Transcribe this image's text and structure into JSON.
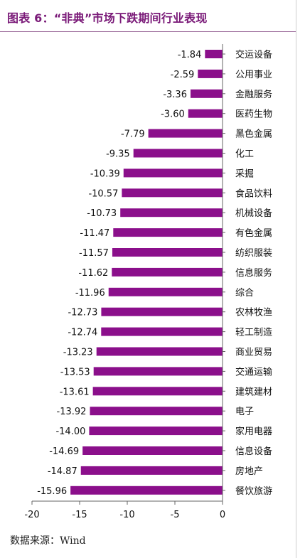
{
  "title": "图表 6：“非典”市场下跌期间行业表现",
  "source": "数据来源：Wind",
  "colors": {
    "bar": "#8B0F8B",
    "title": "#7a1a78",
    "axis": "#666666"
  },
  "chart_data": {
    "type": "bar",
    "orientation": "horizontal",
    "title": "图表 6：“非典”市场下跌期间行业表现",
    "xlabel": "",
    "ylabel": "",
    "xlim": [
      -20,
      0
    ],
    "xticks": [
      -20,
      -15,
      -10,
      -5,
      0
    ],
    "grid": false,
    "legend": "none",
    "categories": [
      "交运设备",
      "公用事业",
      "金融服务",
      "医药生物",
      "黑色金属",
      "化工",
      "采掘",
      "食品饮料",
      "机械设备",
      "有色金属",
      "纺织服装",
      "信息服务",
      "综合",
      "农林牧渔",
      "轻工制造",
      "商业贸易",
      "交通运输",
      "建筑建材",
      "电子",
      "家用电器",
      "信息设备",
      "房地产",
      "餐饮旅游"
    ],
    "values": [
      -1.84,
      -2.59,
      -3.36,
      -3.6,
      -7.79,
      -9.35,
      -10.39,
      -10.57,
      -10.73,
      -11.47,
      -11.57,
      -11.62,
      -11.96,
      -12.73,
      -12.74,
      -13.23,
      -13.53,
      -13.61,
      -13.92,
      -14.0,
      -14.69,
      -14.87,
      -15.96
    ],
    "data_labels": [
      "-1.84",
      "-2.59",
      "-3.36",
      "-3.60",
      "-7.79",
      "-9.35",
      "-10.39",
      "-10.57",
      "-10.73",
      "-11.47",
      "-11.57",
      "-11.62",
      "-11.96",
      "-12.73",
      "-12.74",
      "-13.23",
      "-13.53",
      "-13.61",
      "-13.92",
      "-14.00",
      "-14.69",
      "-14.87",
      "-15.96"
    ]
  }
}
